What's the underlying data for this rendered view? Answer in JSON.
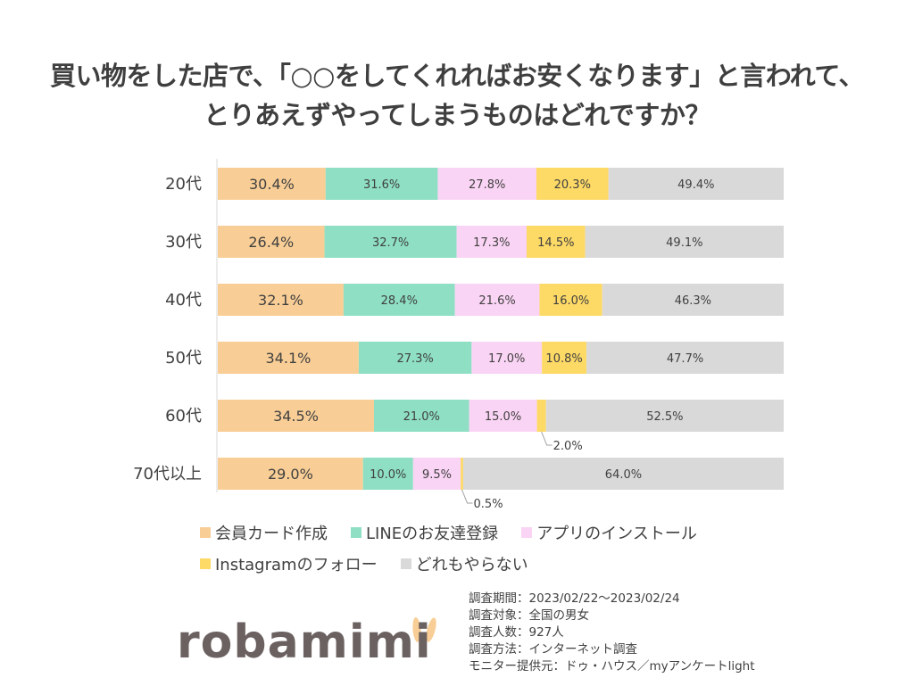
{
  "title": {
    "line1": "買い物をした店で、「○○をしてくれればお安くなります」と言われて、",
    "line2": "とりあえずやってしまうものはどれですか？"
  },
  "chart_data": {
    "type": "bar",
    "orientation": "horizontal",
    "stacked": "normalized",
    "categories": [
      "20代",
      "30代",
      "40代",
      "50代",
      "60代",
      "70代以上"
    ],
    "series": [
      {
        "name": "会員カード作成",
        "color": "#F9CE96",
        "values": [
          30.4,
          26.4,
          32.1,
          34.1,
          34.5,
          29.0
        ],
        "labels": [
          "30.4%",
          "26.4%",
          "32.1%",
          "34.1%",
          "34.5%",
          "29.0%"
        ]
      },
      {
        "name": "LINEのお友達登録",
        "color": "#8EDFC4",
        "values": [
          31.6,
          32.7,
          28.4,
          27.3,
          21.0,
          10.0
        ],
        "labels": [
          "31.6%",
          "32.7%",
          "28.4%",
          "27.3%",
          "21.0%",
          "10.0%"
        ]
      },
      {
        "name": "アプリのインストール",
        "color": "#FAD4F4",
        "values": [
          27.8,
          17.3,
          21.6,
          17.0,
          15.0,
          9.5
        ],
        "labels": [
          "27.8%",
          "17.3%",
          "21.6%",
          "17.0%",
          "15.0%",
          "9.5%"
        ]
      },
      {
        "name": "Instagramのフォロー",
        "color": "#FDD966",
        "values": [
          20.3,
          14.5,
          16.0,
          10.8,
          2.0,
          0.5
        ],
        "labels": [
          "20.3%",
          "14.5%",
          "16.0%",
          "10.8%",
          "2.0%",
          "0.5%"
        ]
      },
      {
        "name": "どれもやらない",
        "color": "#D9D9D9",
        "values": [
          49.4,
          49.1,
          46.3,
          47.7,
          52.5,
          64.0
        ],
        "labels": [
          "49.4%",
          "49.1%",
          "46.3%",
          "47.7%",
          "52.5%",
          "64.0%"
        ]
      }
    ],
    "legend_position": "bottom-left",
    "grid": false
  },
  "footnote": [
    "調査期間：2023/02/22～2023/02/24",
    "調査対象：全国の男女",
    "調査人数：927人",
    "調査方法：インターネット調査",
    "モニター提供元：ドゥ・ハウス／myアンケートlight"
  ],
  "logo": {
    "text": "robamimi",
    "ear_color": "#F9CE96"
  }
}
